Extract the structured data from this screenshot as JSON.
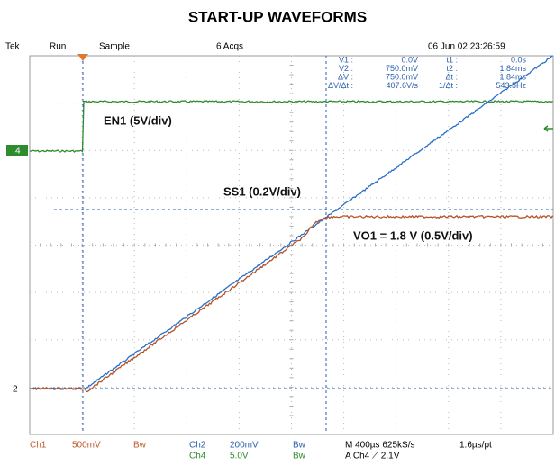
{
  "title": "START-UP WAVEFORMS",
  "status": {
    "brand": "Tek",
    "mode": "Run",
    "acquisition": "Sample",
    "acquisitions": "6 Acqs",
    "datetime": "06 Jun 02 23:26:59"
  },
  "cursors": {
    "left": [
      [
        "V1 :",
        "0.0V"
      ],
      [
        "V2 :",
        "750.0mV"
      ],
      [
        "ΔV :",
        "750.0mV"
      ],
      [
        "ΔV/Δt :",
        "407.6V/s"
      ]
    ],
    "right": [
      [
        "t1 :",
        "0.0s"
      ],
      [
        "t2 :",
        "1.84ms"
      ],
      [
        "Δt :",
        "1.84ms"
      ],
      [
        "1/Δt :",
        "543.5Hz"
      ]
    ]
  },
  "traces": {
    "en1": "EN1 (5V/div)",
    "ss1": "SS1 (0.2V/div)",
    "vo1": "VO1 = 1.8 V (0.5V/div)"
  },
  "markers": {
    "ch4": "4",
    "ch2": "2"
  },
  "footer": {
    "ch1": "Ch1",
    "ch1_scale": "500mV",
    "ch1_bw": "Bw",
    "ch2": "Ch2",
    "ch2_scale": "200mV",
    "ch2_bw": "Bw",
    "ch4": "Ch4",
    "ch4_scale": "5.0V",
    "ch4_bw": "Bw",
    "timebase": "M 400µs 625kS/s",
    "trigger": "A Ch4 ⟋ 2.1V",
    "resolution": "1.6µs/pt"
  }
}
